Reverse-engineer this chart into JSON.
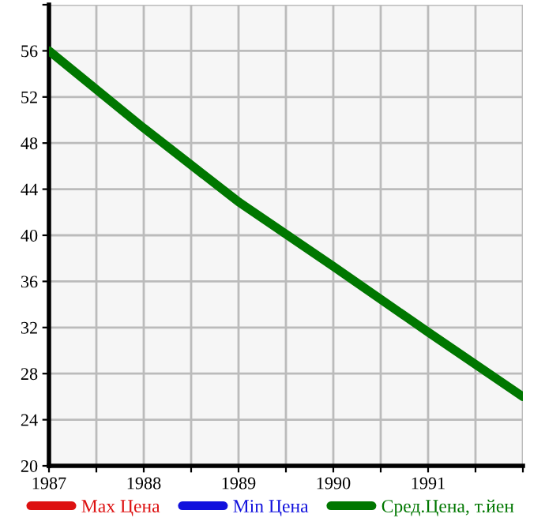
{
  "chart_data": {
    "type": "line",
    "x": [
      1987,
      1988,
      1989,
      1990,
      1991,
      1992
    ],
    "series": [
      {
        "name": "Max Цена",
        "color": "#dd1111",
        "values": [
          null,
          null,
          null,
          null,
          null,
          null
        ]
      },
      {
        "name": "Min Цена",
        "color": "#1111dd",
        "values": [
          null,
          null,
          null,
          null,
          null,
          null
        ]
      },
      {
        "name": "Сред.Цена, т.йен",
        "color": "#007700",
        "values": [
          56,
          49.3,
          42.9,
          37.3,
          31.6,
          26
        ]
      }
    ],
    "xlim": [
      1987,
      1992
    ],
    "xticks": [
      1987,
      {
        "value": 1987.5,
        "label": null
      },
      1988,
      {
        "value": 1988.5,
        "label": null
      },
      1989,
      {
        "value": 1989.5,
        "label": null
      },
      1990,
      {
        "value": 1990.5,
        "label": null
      },
      1991,
      {
        "value": 1991.5,
        "label": null
      },
      {
        "value": 1992,
        "label": null
      }
    ],
    "ylim": [
      20,
      60
    ],
    "yticks": [
      20,
      24,
      28,
      32,
      36,
      40,
      44,
      48,
      52,
      56,
      {
        "value": 60,
        "label": null
      }
    ],
    "grid": true,
    "legend": "bottom",
    "marker": "none",
    "line_style": "solid"
  }
}
